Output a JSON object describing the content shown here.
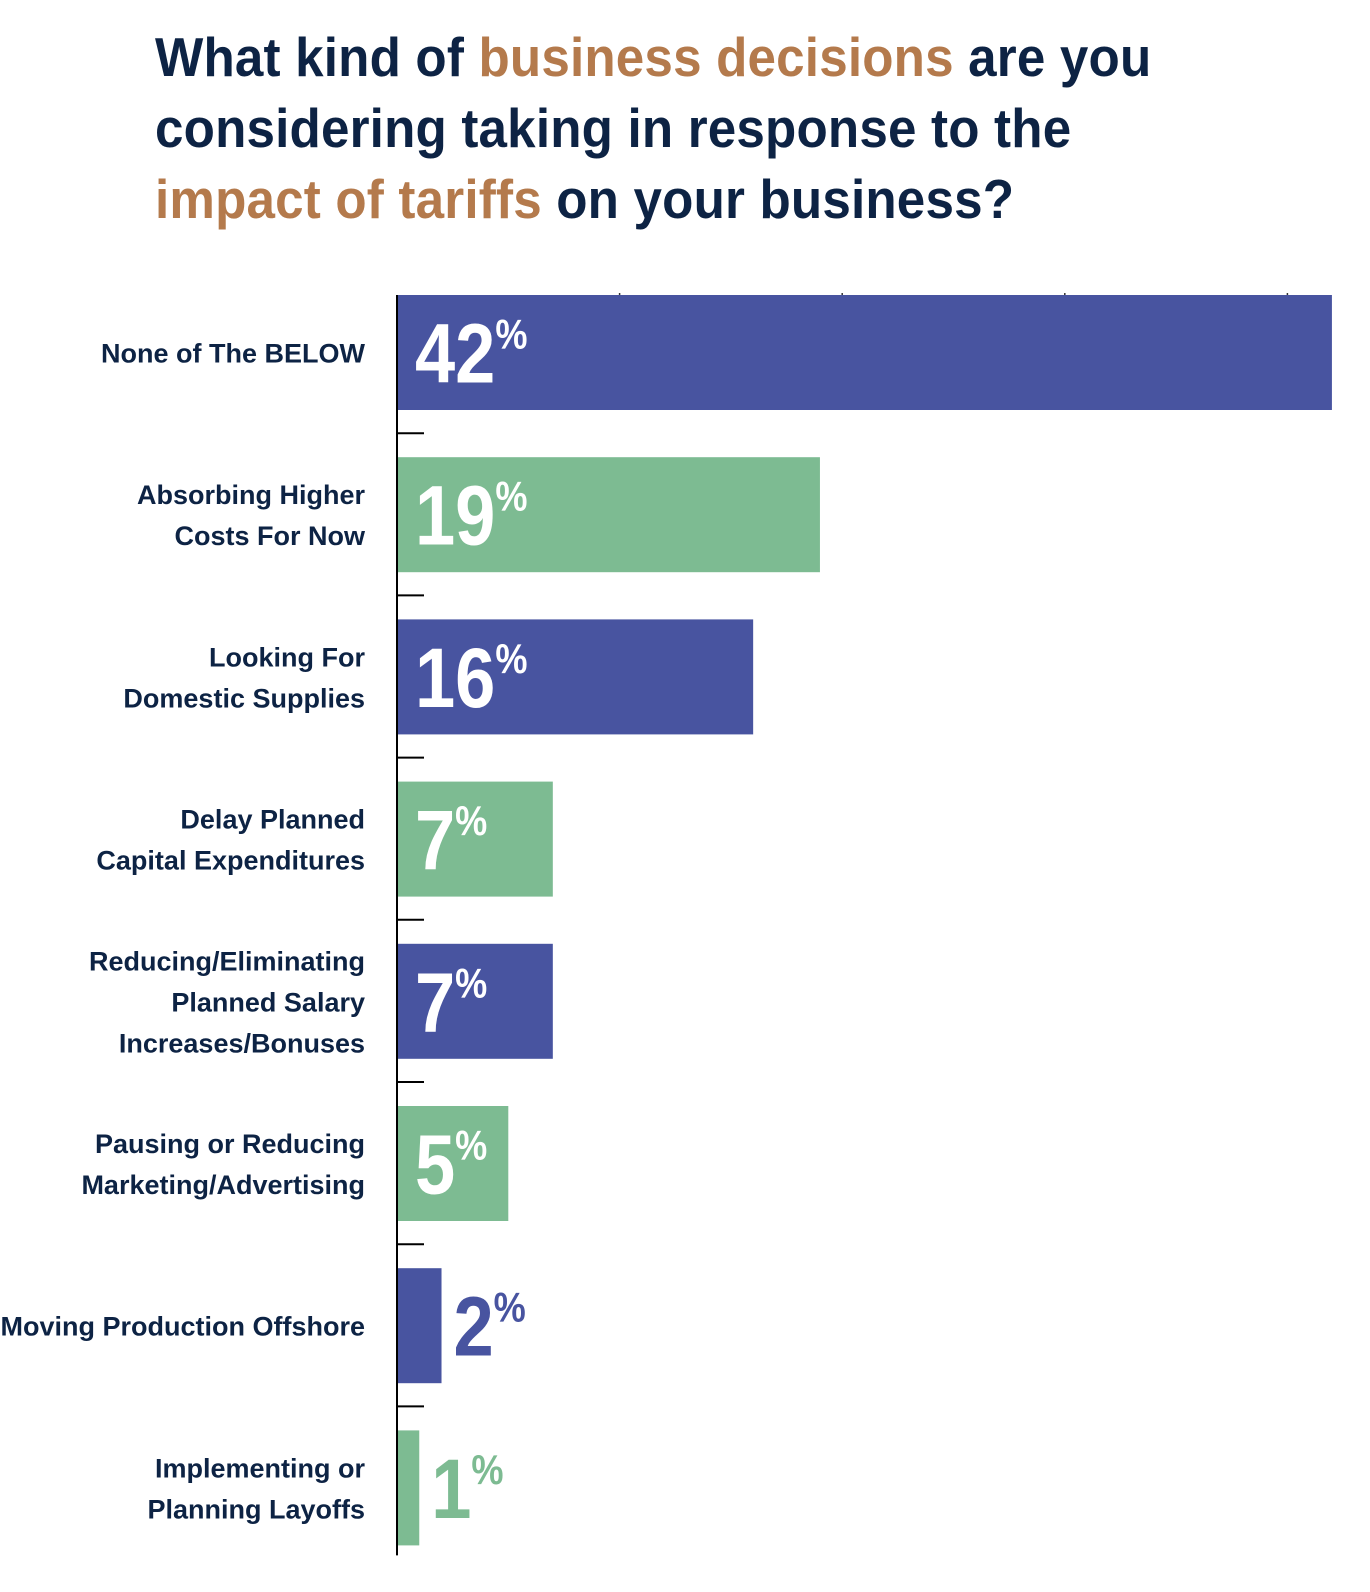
{
  "title": {
    "parts": [
      {
        "text": "What kind of ",
        "highlight": false
      },
      {
        "text": "business decisions",
        "highlight": true
      },
      {
        "text": " are you considering taking in response to the ",
        "highlight": false
      },
      {
        "text": "impact of tariffs",
        "highlight": true
      },
      {
        "text": " on your business?",
        "highlight": false
      }
    ]
  },
  "colors": {
    "title_text": "#0d2344",
    "title_highlight": "#b47a4c",
    "label_text": "#0d2344",
    "bar_blue": "#4854a0",
    "bar_green": "#7dbb92",
    "value_on_bar": "#ffffff",
    "axis": "#000000"
  },
  "chart_data": {
    "type": "bar",
    "orientation": "horizontal",
    "title": "What kind of business decisions are you considering taking in response to the impact of tariffs on your business?",
    "xlabel": "",
    "ylabel": "",
    "xlim": [
      0,
      42
    ],
    "grid": false,
    "legend": "none",
    "value_suffix": "%",
    "categories": [
      [
        "None of The  BELOW"
      ],
      [
        "Absorbing Higher",
        "Costs For Now"
      ],
      [
        "Looking For",
        "Domestic Supplies"
      ],
      [
        "Delay Planned",
        "Capital Expenditures"
      ],
      [
        "Reducing/Eliminating",
        "Planned Salary",
        "Increases/Bonuses"
      ],
      [
        "Pausing or Reducing",
        "Marketing/Advertising"
      ],
      [
        "Moving Production Offshore"
      ],
      [
        "Implementing or",
        "Planning Layoffs"
      ]
    ],
    "values": [
      42,
      19,
      16,
      7,
      7,
      5,
      2,
      1
    ],
    "bar_colors": [
      "blue",
      "green",
      "blue",
      "green",
      "blue",
      "green",
      "blue",
      "green"
    ]
  }
}
